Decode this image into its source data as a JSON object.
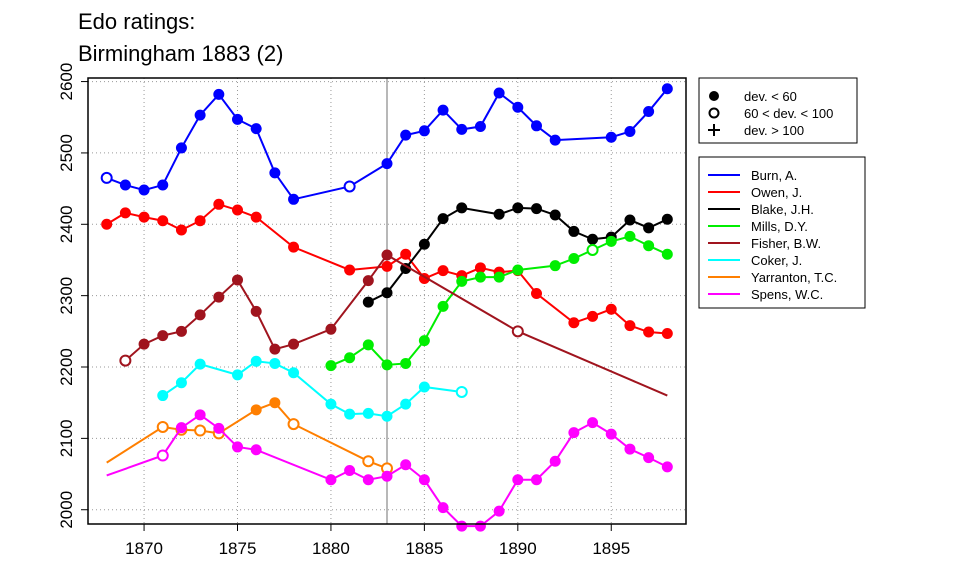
{
  "chart_data": {
    "type": "line",
    "title": [
      "Edo ratings:",
      "Birmingham 1883 (2)"
    ],
    "xlim": [
      1867,
      1899
    ],
    "ylim": [
      1980,
      2605
    ],
    "x_ticks": [
      1870,
      1875,
      1880,
      1885,
      1890,
      1895
    ],
    "y_ticks": [
      2000,
      2100,
      2200,
      2300,
      2400,
      2500,
      2600
    ],
    "grid": true,
    "event_year": 1883,
    "deviation_legend": [
      {
        "symbol": "filled",
        "label": "dev. < 60"
      },
      {
        "symbol": "open",
        "label": "60 < dev. < 100"
      },
      {
        "symbol": "plus",
        "label": "dev. > 100"
      }
    ],
    "series": [
      {
        "name": "Burn, A.",
        "color": "#0000FF",
        "points": [
          [
            1868,
            2465,
            "o"
          ],
          [
            1869,
            2455,
            "f"
          ],
          [
            1870,
            2448,
            "f"
          ],
          [
            1871,
            2455,
            "f"
          ],
          [
            1872,
            2507,
            "f"
          ],
          [
            1873,
            2553,
            "f"
          ],
          [
            1874,
            2582,
            "f"
          ],
          [
            1875,
            2547,
            "f"
          ],
          [
            1876,
            2534,
            "f"
          ],
          [
            1877,
            2472,
            "f"
          ],
          [
            1878,
            2435,
            "f"
          ],
          [
            1881,
            2453,
            "o"
          ],
          [
            1883,
            2485,
            "f"
          ],
          [
            1884,
            2525,
            "f"
          ],
          [
            1885,
            2531,
            "f"
          ],
          [
            1886,
            2560,
            "f"
          ],
          [
            1887,
            2533,
            "f"
          ],
          [
            1888,
            2537,
            "f"
          ],
          [
            1889,
            2584,
            "f"
          ],
          [
            1890,
            2564,
            "f"
          ],
          [
            1891,
            2538,
            "f"
          ],
          [
            1892,
            2518,
            "f"
          ],
          [
            1895,
            2522,
            "f"
          ],
          [
            1896,
            2530,
            "f"
          ],
          [
            1897,
            2558,
            "f"
          ],
          [
            1898,
            2590,
            "f"
          ]
        ]
      },
      {
        "name": "Owen, J.",
        "color": "#FF0000",
        "points": [
          [
            1868,
            2400,
            "f"
          ],
          [
            1869,
            2416,
            "f"
          ],
          [
            1870,
            2410,
            "f"
          ],
          [
            1871,
            2405,
            "f"
          ],
          [
            1872,
            2392,
            "f"
          ],
          [
            1873,
            2405,
            "f"
          ],
          [
            1874,
            2428,
            "f"
          ],
          [
            1875,
            2420,
            "f"
          ],
          [
            1876,
            2410,
            "f"
          ],
          [
            1878,
            2368,
            "f"
          ],
          [
            1881,
            2336,
            "f"
          ],
          [
            1883,
            2341,
            "f"
          ],
          [
            1884,
            2358,
            "f"
          ],
          [
            1885,
            2324,
            "f"
          ],
          [
            1886,
            2335,
            "f"
          ],
          [
            1887,
            2328,
            "f"
          ],
          [
            1888,
            2339,
            "f"
          ],
          [
            1889,
            2333,
            "f"
          ],
          [
            1890,
            2335,
            "f"
          ],
          [
            1891,
            2303,
            "f"
          ],
          [
            1893,
            2262,
            "f"
          ],
          [
            1894,
            2271,
            "f"
          ],
          [
            1895,
            2281,
            "f"
          ],
          [
            1896,
            2258,
            "f"
          ],
          [
            1897,
            2249,
            "f"
          ],
          [
            1898,
            2247,
            "f"
          ]
        ]
      },
      {
        "name": "Blake, J.H.",
        "color": "#000000",
        "points": [
          [
            1882,
            2291,
            "f"
          ],
          [
            1883,
            2304,
            "f"
          ],
          [
            1884,
            2338,
            "f"
          ],
          [
            1885,
            2372,
            "f"
          ],
          [
            1886,
            2408,
            "f"
          ],
          [
            1887,
            2423,
            "f"
          ],
          [
            1889,
            2414,
            "f"
          ],
          [
            1890,
            2423,
            "f"
          ],
          [
            1891,
            2422,
            "f"
          ],
          [
            1892,
            2413,
            "f"
          ],
          [
            1893,
            2390,
            "f"
          ],
          [
            1894,
            2379,
            "f"
          ],
          [
            1895,
            2382,
            "f"
          ],
          [
            1896,
            2406,
            "f"
          ],
          [
            1897,
            2395,
            "f"
          ],
          [
            1898,
            2407,
            "f"
          ]
        ]
      },
      {
        "name": "Mills, D.Y.",
        "color": "#00EE00",
        "points": [
          [
            1880,
            2202,
            "f"
          ],
          [
            1881,
            2213,
            "f"
          ],
          [
            1882,
            2231,
            "f"
          ],
          [
            1883,
            2203,
            "f"
          ],
          [
            1884,
            2205,
            "f"
          ],
          [
            1885,
            2237,
            "f"
          ],
          [
            1886,
            2285,
            "f"
          ],
          [
            1887,
            2320,
            "f"
          ],
          [
            1888,
            2326,
            "f"
          ],
          [
            1889,
            2326,
            "f"
          ],
          [
            1890,
            2336,
            "f"
          ],
          [
            1892,
            2342,
            "f"
          ],
          [
            1893,
            2352,
            "f"
          ],
          [
            1894,
            2364,
            "o"
          ],
          [
            1895,
            2376,
            "f"
          ],
          [
            1896,
            2383,
            "f"
          ],
          [
            1897,
            2370,
            "f"
          ],
          [
            1898,
            2358,
            "f"
          ]
        ]
      },
      {
        "name": "Fisher, B.W.",
        "color": "#A0141E",
        "points": [
          [
            1869,
            2209,
            "o"
          ],
          [
            1870,
            2232,
            "f"
          ],
          [
            1871,
            2244,
            "f"
          ],
          [
            1872,
            2250,
            "f"
          ],
          [
            1873,
            2273,
            "f"
          ],
          [
            1874,
            2298,
            "f"
          ],
          [
            1875,
            2322,
            "f"
          ],
          [
            1876,
            2278,
            "f"
          ],
          [
            1877,
            2225,
            "f"
          ],
          [
            1878,
            2232,
            "f"
          ],
          [
            1880,
            2253,
            "f"
          ],
          [
            1882,
            2321,
            "f"
          ],
          [
            1883,
            2357,
            "f"
          ],
          [
            1890,
            2250,
            "o"
          ],
          [
            1898,
            2160,
            "n"
          ]
        ]
      },
      {
        "name": "Coker, J.",
        "color": "#00FFFF",
        "points": [
          [
            1871,
            2160,
            "f"
          ],
          [
            1872,
            2178,
            "f"
          ],
          [
            1873,
            2204,
            "f"
          ],
          [
            1875,
            2189,
            "f"
          ],
          [
            1876,
            2208,
            "f"
          ],
          [
            1877,
            2205,
            "f"
          ],
          [
            1878,
            2192,
            "f"
          ],
          [
            1880,
            2148,
            "f"
          ],
          [
            1881,
            2134,
            "f"
          ],
          [
            1882,
            2135,
            "f"
          ],
          [
            1883,
            2131,
            "f"
          ],
          [
            1884,
            2148,
            "f"
          ],
          [
            1885,
            2172,
            "f"
          ],
          [
            1887,
            2165,
            "o"
          ]
        ]
      },
      {
        "name": "Yarranton, T.C.",
        "color": "#FF7F00",
        "points": [
          [
            1868,
            2066,
            "n"
          ],
          [
            1871,
            2116,
            "o"
          ],
          [
            1872,
            2112,
            "o"
          ],
          [
            1873,
            2111,
            "o"
          ],
          [
            1874,
            2107,
            "o"
          ],
          [
            1876,
            2140,
            "f"
          ],
          [
            1877,
            2150,
            "f"
          ],
          [
            1878,
            2120,
            "o"
          ],
          [
            1882,
            2068,
            "o"
          ],
          [
            1883,
            2058,
            "o"
          ]
        ]
      },
      {
        "name": "Spens, W.C.",
        "color": "#FF00FF",
        "points": [
          [
            1868,
            2048,
            "n"
          ],
          [
            1871,
            2076,
            "o"
          ],
          [
            1872,
            2115,
            "f"
          ],
          [
            1873,
            2133,
            "f"
          ],
          [
            1874,
            2114,
            "f"
          ],
          [
            1875,
            2088,
            "f"
          ],
          [
            1876,
            2084,
            "f"
          ],
          [
            1880,
            2042,
            "f"
          ],
          [
            1881,
            2055,
            "f"
          ],
          [
            1882,
            2042,
            "f"
          ],
          [
            1883,
            2047,
            "f"
          ],
          [
            1884,
            2063,
            "f"
          ],
          [
            1885,
            2042,
            "f"
          ],
          [
            1886,
            2003,
            "f"
          ],
          [
            1887,
            1977,
            "f"
          ],
          [
            1888,
            1977,
            "f"
          ],
          [
            1889,
            1998,
            "f"
          ],
          [
            1890,
            2042,
            "f"
          ],
          [
            1891,
            2042,
            "f"
          ],
          [
            1892,
            2068,
            "f"
          ],
          [
            1893,
            2108,
            "f"
          ],
          [
            1894,
            2122,
            "f"
          ],
          [
            1895,
            2106,
            "f"
          ],
          [
            1896,
            2085,
            "f"
          ],
          [
            1897,
            2073,
            "f"
          ],
          [
            1898,
            2060,
            "f"
          ]
        ]
      }
    ]
  }
}
